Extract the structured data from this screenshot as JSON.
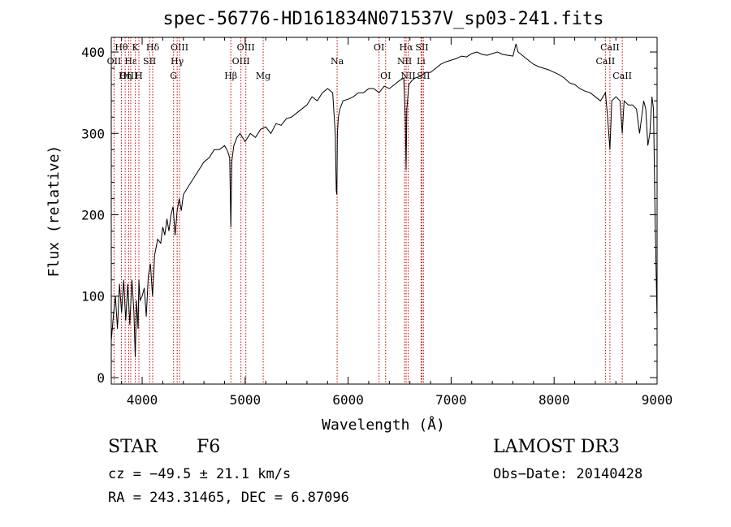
{
  "colors": {
    "line_marker": "#cc0000",
    "spectrum": "#000000",
    "axis": "#000000"
  },
  "chart_data": {
    "type": "line",
    "title": "spec-56776-HD161834N071537V_sp03-241.fits",
    "xlabel": "Wavelength (Å)",
    "ylabel": "Flux (relative)",
    "xlim": [
      3700,
      9000
    ],
    "ylim": [
      -8,
      418
    ],
    "xticks": [
      4000,
      5000,
      6000,
      7000,
      8000,
      9000
    ],
    "yticks": [
      0,
      100,
      200,
      300,
      400
    ],
    "series": [
      {
        "name": "flux",
        "x": [
          3700,
          3720,
          3740,
          3760,
          3780,
          3800,
          3820,
          3840,
          3860,
          3880,
          3900,
          3920,
          3933,
          3945,
          3960,
          3968,
          3980,
          4000,
          4020,
          4040,
          4060,
          4080,
          4101,
          4120,
          4150,
          4180,
          4200,
          4220,
          4240,
          4260,
          4280,
          4300,
          4320,
          4340,
          4360,
          4380,
          4400,
          4450,
          4500,
          4550,
          4600,
          4650,
          4700,
          4750,
          4800,
          4830,
          4850,
          4861,
          4870,
          4890,
          4920,
          4950,
          5000,
          5050,
          5100,
          5150,
          5200,
          5250,
          5300,
          5350,
          5400,
          5450,
          5500,
          5550,
          5600,
          5650,
          5700,
          5750,
          5800,
          5850,
          5875,
          5885,
          5890,
          5896,
          5905,
          5920,
          5950,
          6000,
          6050,
          6100,
          6150,
          6200,
          6250,
          6300,
          6350,
          6400,
          6450,
          6500,
          6540,
          6555,
          6563,
          6570,
          6590,
          6620,
          6650,
          6700,
          6750,
          6800,
          6850,
          6900,
          6950,
          7000,
          7050,
          7100,
          7150,
          7200,
          7250,
          7300,
          7350,
          7400,
          7450,
          7500,
          7550,
          7600,
          7630,
          7650,
          7700,
          7750,
          7800,
          7850,
          7900,
          7950,
          8000,
          8050,
          8100,
          8150,
          8200,
          8250,
          8300,
          8350,
          8400,
          8450,
          8498,
          8520,
          8542,
          8560,
          8600,
          8640,
          8662,
          8680,
          8720,
          8760,
          8800,
          8830,
          8850,
          8870,
          8890,
          8910,
          8930,
          8950,
          8965,
          8980,
          9000
        ],
        "y": [
          45,
          75,
          100,
          60,
          115,
          80,
          120,
          70,
          115,
          65,
          120,
          80,
          25,
          95,
          60,
          120,
          95,
          100,
          110,
          75,
          125,
          140,
          100,
          150,
          170,
          165,
          185,
          175,
          195,
          180,
          200,
          210,
          175,
          205,
          220,
          205,
          225,
          235,
          245,
          255,
          265,
          270,
          280,
          280,
          285,
          278,
          270,
          185,
          265,
          285,
          295,
          300,
          290,
          300,
          295,
          305,
          308,
          300,
          312,
          310,
          318,
          320,
          325,
          330,
          335,
          345,
          340,
          350,
          355,
          350,
          300,
          230,
          225,
          300,
          320,
          330,
          340,
          342,
          345,
          350,
          350,
          355,
          355,
          350,
          358,
          355,
          360,
          365,
          368,
          320,
          255,
          330,
          360,
          365,
          368,
          370,
          375,
          375,
          380,
          385,
          388,
          390,
          392,
          395,
          394,
          398,
          400,
          397,
          396,
          398,
          400,
          397,
          396,
          395,
          410,
          400,
          395,
          390,
          385,
          382,
          380,
          378,
          375,
          372,
          368,
          362,
          360,
          355,
          352,
          350,
          345,
          340,
          350,
          320,
          280,
          340,
          345,
          340,
          300,
          340,
          335,
          335,
          330,
          300,
          320,
          340,
          330,
          285,
          300,
          345,
          330,
          200,
          70
        ]
      }
    ],
    "line_markers": [
      {
        "label": "Hθ",
        "wl": 3798,
        "row": 1
      },
      {
        "label": "OII",
        "wl": 3727,
        "row": 2
      },
      {
        "label": "OIII",
        "wl": 3869,
        "row": 3
      },
      {
        "label": "Hε",
        "wl": 3889,
        "row": 2
      },
      {
        "label": "Hη",
        "wl": 3835,
        "row": 3
      },
      {
        "label": "K",
        "wl": 3934,
        "row": 1
      },
      {
        "label": "H",
        "wl": 3968,
        "row": 3
      },
      {
        "label": "SII",
        "wl": 4072,
        "row": 2
      },
      {
        "label": "Hδ",
        "wl": 4102,
        "row": 1
      },
      {
        "label": "OIII",
        "wl": 4363,
        "row": 1
      },
      {
        "label": "Hγ",
        "wl": 4340,
        "row": 2
      },
      {
        "label": "G",
        "wl": 4305,
        "row": 3
      },
      {
        "label": "Hβ",
        "wl": 4861,
        "row": 3
      },
      {
        "label": "OIII",
        "wl": 5007,
        "row": 1
      },
      {
        "label": "OIII",
        "wl": 4959,
        "row": 2
      },
      {
        "label": "Mg",
        "wl": 5175,
        "row": 3
      },
      {
        "label": "Na",
        "wl": 5893,
        "row": 2
      },
      {
        "label": "OI",
        "wl": 6300,
        "row": 1
      },
      {
        "label": "OI",
        "wl": 6364,
        "row": 3
      },
      {
        "label": "Hα",
        "wl": 6563,
        "row": 1
      },
      {
        "label": "NII",
        "wl": 6548,
        "row": 2
      },
      {
        "label": "NII",
        "wl": 6583,
        "row": 3
      },
      {
        "label": "SII",
        "wl": 6717,
        "row": 1
      },
      {
        "label": "Li",
        "wl": 6708,
        "row": 2
      },
      {
        "label": "SII",
        "wl": 6731,
        "row": 3
      },
      {
        "label": "CaII",
        "wl": 8542,
        "row": 1
      },
      {
        "label": "CaII",
        "wl": 8498,
        "row": 2
      },
      {
        "label": "CaII",
        "wl": 8662,
        "row": 3
      }
    ]
  },
  "info": {
    "object_class": "STAR",
    "subclass": "F6",
    "survey": "LAMOST DR3",
    "cz": "cz = −49.5 ± 21.1 km/s",
    "obs_date": "Obs−Date: 20140428",
    "radec": "RA = 243.31465, DEC =   6.87096"
  }
}
